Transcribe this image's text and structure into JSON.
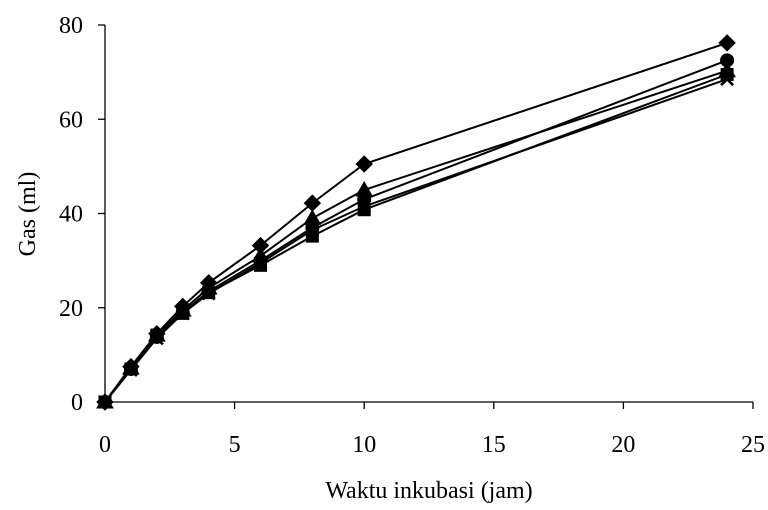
{
  "chart_data": {
    "type": "line",
    "xlabel": "Waktu inkubasi (jam)",
    "ylabel": "Gas (ml)",
    "xlim": [
      0,
      25
    ],
    "ylim": [
      0,
      80
    ],
    "x_ticks": [
      "0",
      "5",
      "10",
      "15",
      "20",
      "25"
    ],
    "y_ticks": [
      "0",
      "20",
      "40",
      "60",
      "80"
    ],
    "grid": false,
    "legend": "none",
    "x": [
      0,
      1,
      2,
      3,
      4,
      6,
      8,
      10,
      24
    ],
    "series": [
      {
        "marker": "diamond",
        "values": [
          0,
          7.5,
          14.5,
          20.3,
          25.3,
          33.2,
          42.2,
          50.5,
          76.2
        ]
      },
      {
        "marker": "triangle",
        "values": [
          0,
          7.2,
          14.2,
          19.5,
          24.2,
          31.0,
          39.0,
          45.0,
          70.3
        ]
      },
      {
        "marker": "circle",
        "values": [
          0,
          7.0,
          13.8,
          19.0,
          23.5,
          30.0,
          37.0,
          43.0,
          72.5
        ]
      },
      {
        "marker": "cross",
        "values": [
          0,
          6.8,
          13.5,
          18.8,
          23.0,
          29.5,
          36.5,
          41.5,
          68.5
        ]
      },
      {
        "marker": "square",
        "values": [
          0,
          7.0,
          14.2,
          18.8,
          23.2,
          29.0,
          35.2,
          40.8,
          69.5
        ]
      }
    ]
  }
}
